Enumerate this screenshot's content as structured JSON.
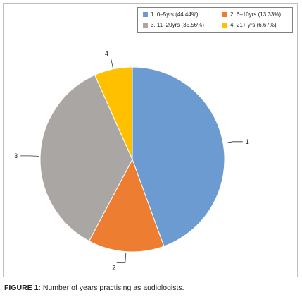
{
  "caption": {
    "prefix": "FIGURE 1:",
    "text": " Number of years practising as audiologists."
  },
  "chart_data": {
    "type": "pie",
    "title": "",
    "legend_position": "top-right",
    "slices": [
      {
        "label": "1",
        "legend": "1. 0–5yrs (44.44%)",
        "value": 44.44,
        "color": "#6c9bd2"
      },
      {
        "label": "2",
        "legend": "2. 6–10yrs (13.33%)",
        "value": 13.33,
        "color": "#ed7d31"
      },
      {
        "label": "3",
        "legend": "3. 11–20yrs (35.56%)",
        "value": 35.56,
        "color": "#a9a6a4"
      },
      {
        "label": "4",
        "legend": "4. 21+ yrs (6.67%)",
        "value": 6.67,
        "color": "#ffc000"
      }
    ]
  }
}
